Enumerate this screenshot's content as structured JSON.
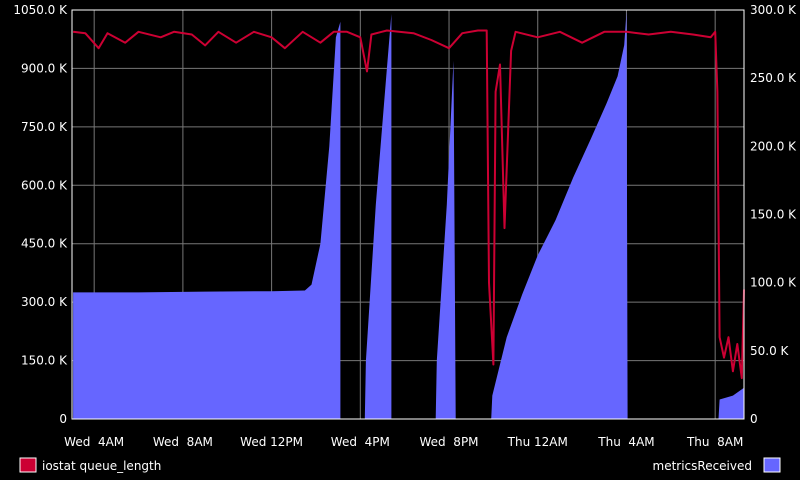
{
  "chart_data": {
    "type": "line",
    "grid": true,
    "legend_placement": "bottom",
    "x_ticks": [
      "Wed  4AM",
      "Wed  8AM",
      "Wed 12PM",
      "Wed  4PM",
      "Wed  8PM",
      "Thu 12AM",
      "Thu  4AM",
      "Thu  8AM"
    ],
    "x_tick_hours": [
      4,
      8,
      12,
      16,
      20,
      24,
      28,
      32
    ],
    "xlim_hours": [
      3.0,
      33.3
    ],
    "left_axis": {
      "ticks": [
        "0",
        "150.0 K",
        "300.0 K",
        "450.0 K",
        "600.0 K",
        "750.0 K",
        "900.0 K",
        "1050.0 K"
      ],
      "ylim": [
        0,
        1050000
      ]
    },
    "right_axis": {
      "ticks": [
        "0",
        "50.0 K",
        "100.0 K",
        "150.0 K",
        "200.0 K",
        "250.0 K",
        "300.0 K"
      ],
      "ylim": [
        0,
        300000
      ]
    },
    "series": [
      {
        "name": "iostat queue_length",
        "axis": "right",
        "style": "line",
        "color": "#cc0033",
        "points": [
          [
            3.05,
            284000
          ],
          [
            3.6,
            283000
          ],
          [
            4.2,
            272000
          ],
          [
            4.6,
            283000
          ],
          [
            5.4,
            276000
          ],
          [
            6.0,
            284000
          ],
          [
            7.0,
            280000
          ],
          [
            7.6,
            284000
          ],
          [
            8.4,
            282000
          ],
          [
            9.0,
            274000
          ],
          [
            9.6,
            284000
          ],
          [
            10.4,
            276000
          ],
          [
            11.2,
            284000
          ],
          [
            12.0,
            280000
          ],
          [
            12.6,
            272000
          ],
          [
            13.4,
            284000
          ],
          [
            14.2,
            276000
          ],
          [
            14.8,
            284000
          ],
          [
            15.4,
            284000
          ],
          [
            16.0,
            280000
          ],
          [
            16.3,
            255000
          ],
          [
            16.5,
            282000
          ],
          [
            17.2,
            285000
          ],
          [
            18.4,
            283000
          ],
          [
            19.2,
            278000
          ],
          [
            20.0,
            272000
          ],
          [
            20.6,
            283000
          ],
          [
            21.3,
            285000
          ],
          [
            21.7,
            285000
          ],
          [
            21.8,
            100000
          ],
          [
            22.0,
            40000
          ],
          [
            22.1,
            240000
          ],
          [
            22.3,
            260000
          ],
          [
            22.5,
            140000
          ],
          [
            22.8,
            270000
          ],
          [
            23.0,
            284000
          ],
          [
            24.0,
            280000
          ],
          [
            25.0,
            284000
          ],
          [
            26.0,
            276000
          ],
          [
            27.0,
            284000
          ],
          [
            28.0,
            284000
          ],
          [
            29.0,
            282000
          ],
          [
            30.0,
            284000
          ],
          [
            31.0,
            282000
          ],
          [
            31.8,
            280000
          ],
          [
            32.0,
            284000
          ],
          [
            32.1,
            240000
          ],
          [
            32.2,
            60000
          ],
          [
            32.4,
            45000
          ],
          [
            32.6,
            60000
          ],
          [
            32.8,
            35000
          ],
          [
            33.0,
            55000
          ],
          [
            33.2,
            30000
          ],
          [
            33.3,
            95000
          ]
        ]
      },
      {
        "name": "metricsReceived",
        "axis": "left",
        "style": "area",
        "color": "#6666ff",
        "points": [
          [
            3.05,
            325000
          ],
          [
            6.0,
            325000
          ],
          [
            9.0,
            327000
          ],
          [
            12.0,
            328000
          ],
          [
            13.5,
            330000
          ],
          [
            13.8,
            345000
          ],
          [
            14.2,
            450000
          ],
          [
            14.6,
            700000
          ],
          [
            14.9,
            980000
          ],
          [
            15.1,
            1020000
          ],
          [
            15.1,
            0
          ],
          [
            16.2,
            0
          ],
          [
            16.25,
            150000
          ],
          [
            16.7,
            550000
          ],
          [
            17.2,
            900000
          ],
          [
            17.4,
            1040000
          ],
          [
            17.4,
            0
          ],
          [
            19.4,
            0
          ],
          [
            19.45,
            150000
          ],
          [
            19.9,
            550000
          ],
          [
            20.2,
            920000
          ],
          [
            20.3,
            0
          ],
          [
            21.9,
            0
          ],
          [
            21.95,
            60000
          ],
          [
            22.6,
            210000
          ],
          [
            23.3,
            320000
          ],
          [
            24.0,
            420000
          ],
          [
            24.8,
            510000
          ],
          [
            25.6,
            620000
          ],
          [
            26.4,
            720000
          ],
          [
            27.1,
            810000
          ],
          [
            27.6,
            880000
          ],
          [
            27.9,
            960000
          ],
          [
            28.0,
            1045000
          ],
          [
            28.05,
            0
          ],
          [
            32.15,
            0
          ],
          [
            32.2,
            50000
          ],
          [
            32.8,
            60000
          ],
          [
            33.3,
            80000
          ]
        ]
      }
    ]
  }
}
